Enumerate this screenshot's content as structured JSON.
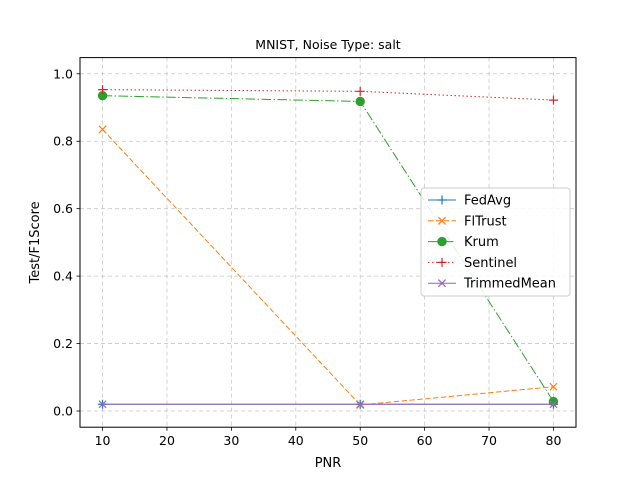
{
  "chart_data": {
    "type": "line",
    "title": "MNIST, Noise Type: salt",
    "xlabel": "PNR",
    "ylabel": "Test/F1Score",
    "x": [
      10,
      50,
      80
    ],
    "xlim": [
      6.5,
      83.5
    ],
    "ylim": [
      -0.048,
      1.048
    ],
    "xticks": [
      10,
      20,
      30,
      40,
      50,
      60,
      70,
      80
    ],
    "yticks": [
      0.0,
      0.2,
      0.4,
      0.6,
      0.8,
      1.0
    ],
    "xtick_labels": [
      "10",
      "20",
      "30",
      "40",
      "50",
      "60",
      "70",
      "80"
    ],
    "ytick_labels": [
      "0.0",
      "0.2",
      "0.4",
      "0.6",
      "0.8",
      "1.0"
    ],
    "grid": true,
    "legend_position": "center-right",
    "series": [
      {
        "name": "FedAvg",
        "values": [
          0.02,
          0.02,
          0.02
        ],
        "color": "#1f77b4",
        "linestyle": "solid",
        "marker": "plus"
      },
      {
        "name": "FlTrust",
        "values": [
          0.835,
          0.018,
          0.072
        ],
        "color": "#ff7f0e",
        "linestyle": "dashed",
        "marker": "x"
      },
      {
        "name": "Krum",
        "values": [
          0.935,
          0.918,
          0.028
        ],
        "color": "#2ca02c",
        "linestyle": "dashdot",
        "marker": "circle"
      },
      {
        "name": "Sentinel",
        "values": [
          0.953,
          0.948,
          0.922
        ],
        "color": "#d62728",
        "linestyle": "dotted",
        "marker": "plus"
      },
      {
        "name": "TrimmedMean",
        "values": [
          0.02,
          0.02,
          0.02
        ],
        "color": "#9467bd",
        "linestyle": "solid",
        "marker": "x"
      }
    ]
  }
}
